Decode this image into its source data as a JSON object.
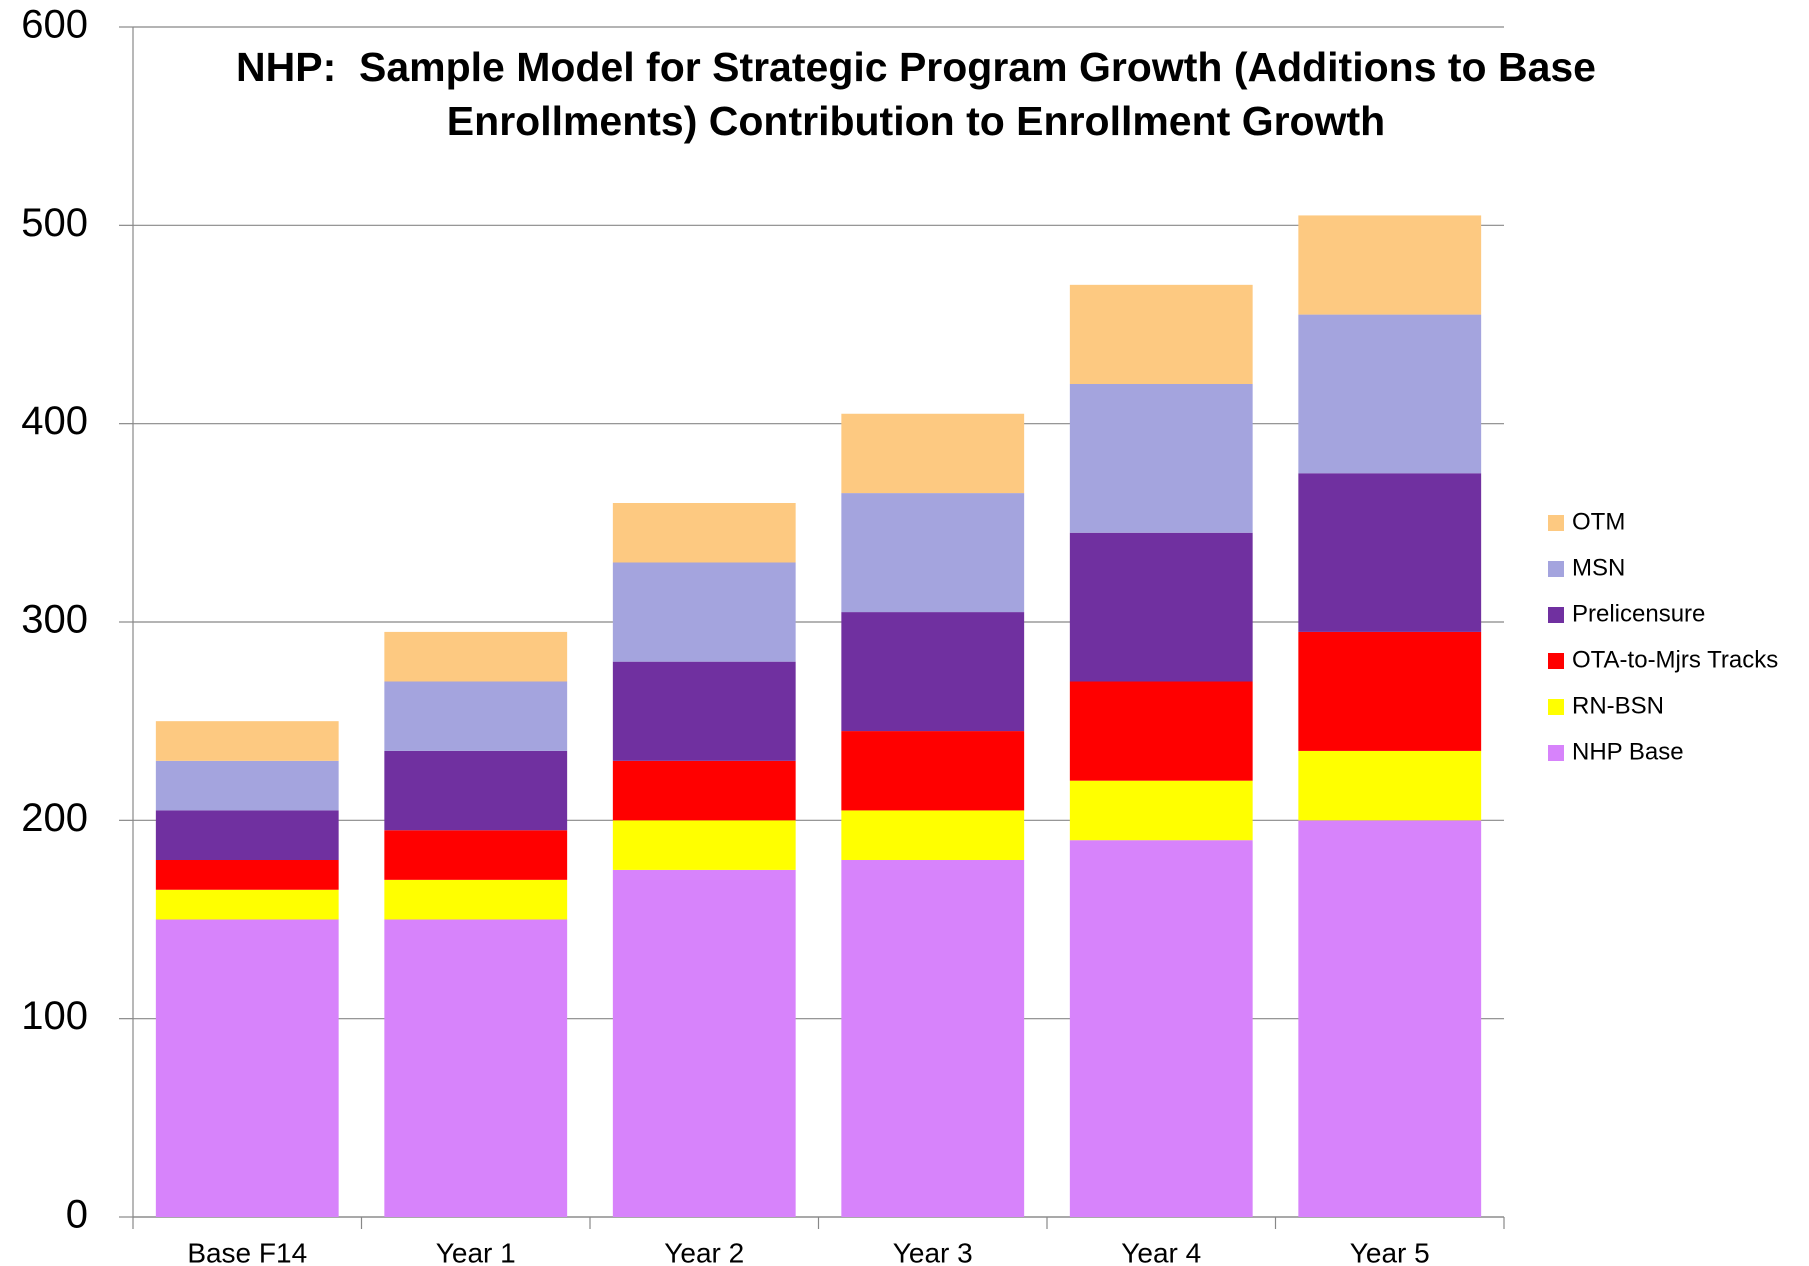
{
  "chart_data": {
    "type": "stacked-bar",
    "title": "NHP:  Sample Model for Strategic Program Growth (Additions to Base Enrollments) Contribution to Enrollment Growth",
    "categories": [
      "Base F14",
      "Year 1",
      "Year 2",
      "Year 3",
      "Year 4",
      "Year 5"
    ],
    "series": [
      {
        "name": "NHP Base",
        "color": "#d783fb",
        "values": [
          150,
          150,
          175,
          180,
          190,
          200
        ]
      },
      {
        "name": "RN-BSN",
        "color": "#ffff00",
        "values": [
          15,
          20,
          25,
          25,
          30,
          35
        ]
      },
      {
        "name": "OTA-to-Mjrs Tracks",
        "color": "#ff0000",
        "values": [
          15,
          25,
          30,
          40,
          50,
          60
        ]
      },
      {
        "name": "Prelicensure",
        "color": "#7030a0",
        "values": [
          25,
          40,
          50,
          60,
          75,
          80
        ]
      },
      {
        "name": "MSN",
        "color": "#a4a4de",
        "values": [
          25,
          35,
          50,
          60,
          75,
          80
        ]
      },
      {
        "name": "OTM",
        "color": "#fdc981",
        "values": [
          20,
          25,
          30,
          40,
          50,
          50
        ]
      }
    ],
    "ylim": [
      0,
      600
    ],
    "yticks": [
      0,
      100,
      200,
      300,
      400,
      500,
      600
    ],
    "grid": true,
    "legend": "right"
  }
}
